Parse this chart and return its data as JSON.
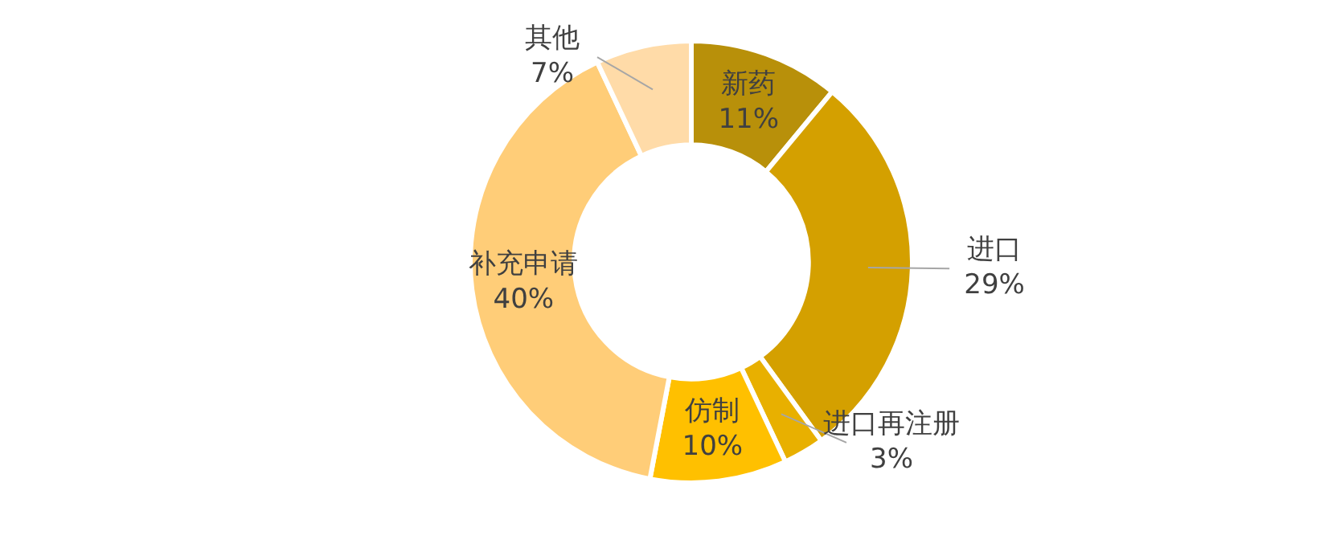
{
  "chart_data": {
    "type": "donut",
    "categories": [
      "新药",
      "进口",
      "进口再注册",
      "仿制",
      "补充申请",
      "其他"
    ],
    "values": [
      11,
      29,
      3,
      10,
      40,
      7
    ],
    "value_labels": [
      "11%",
      "29%",
      "3%",
      "10%",
      "40%",
      "7%"
    ],
    "colors": [
      "#b8900a",
      "#d4a000",
      "#e8b000",
      "#ffc000",
      "#ffcd78",
      "#ffdba8"
    ],
    "legend": false
  }
}
